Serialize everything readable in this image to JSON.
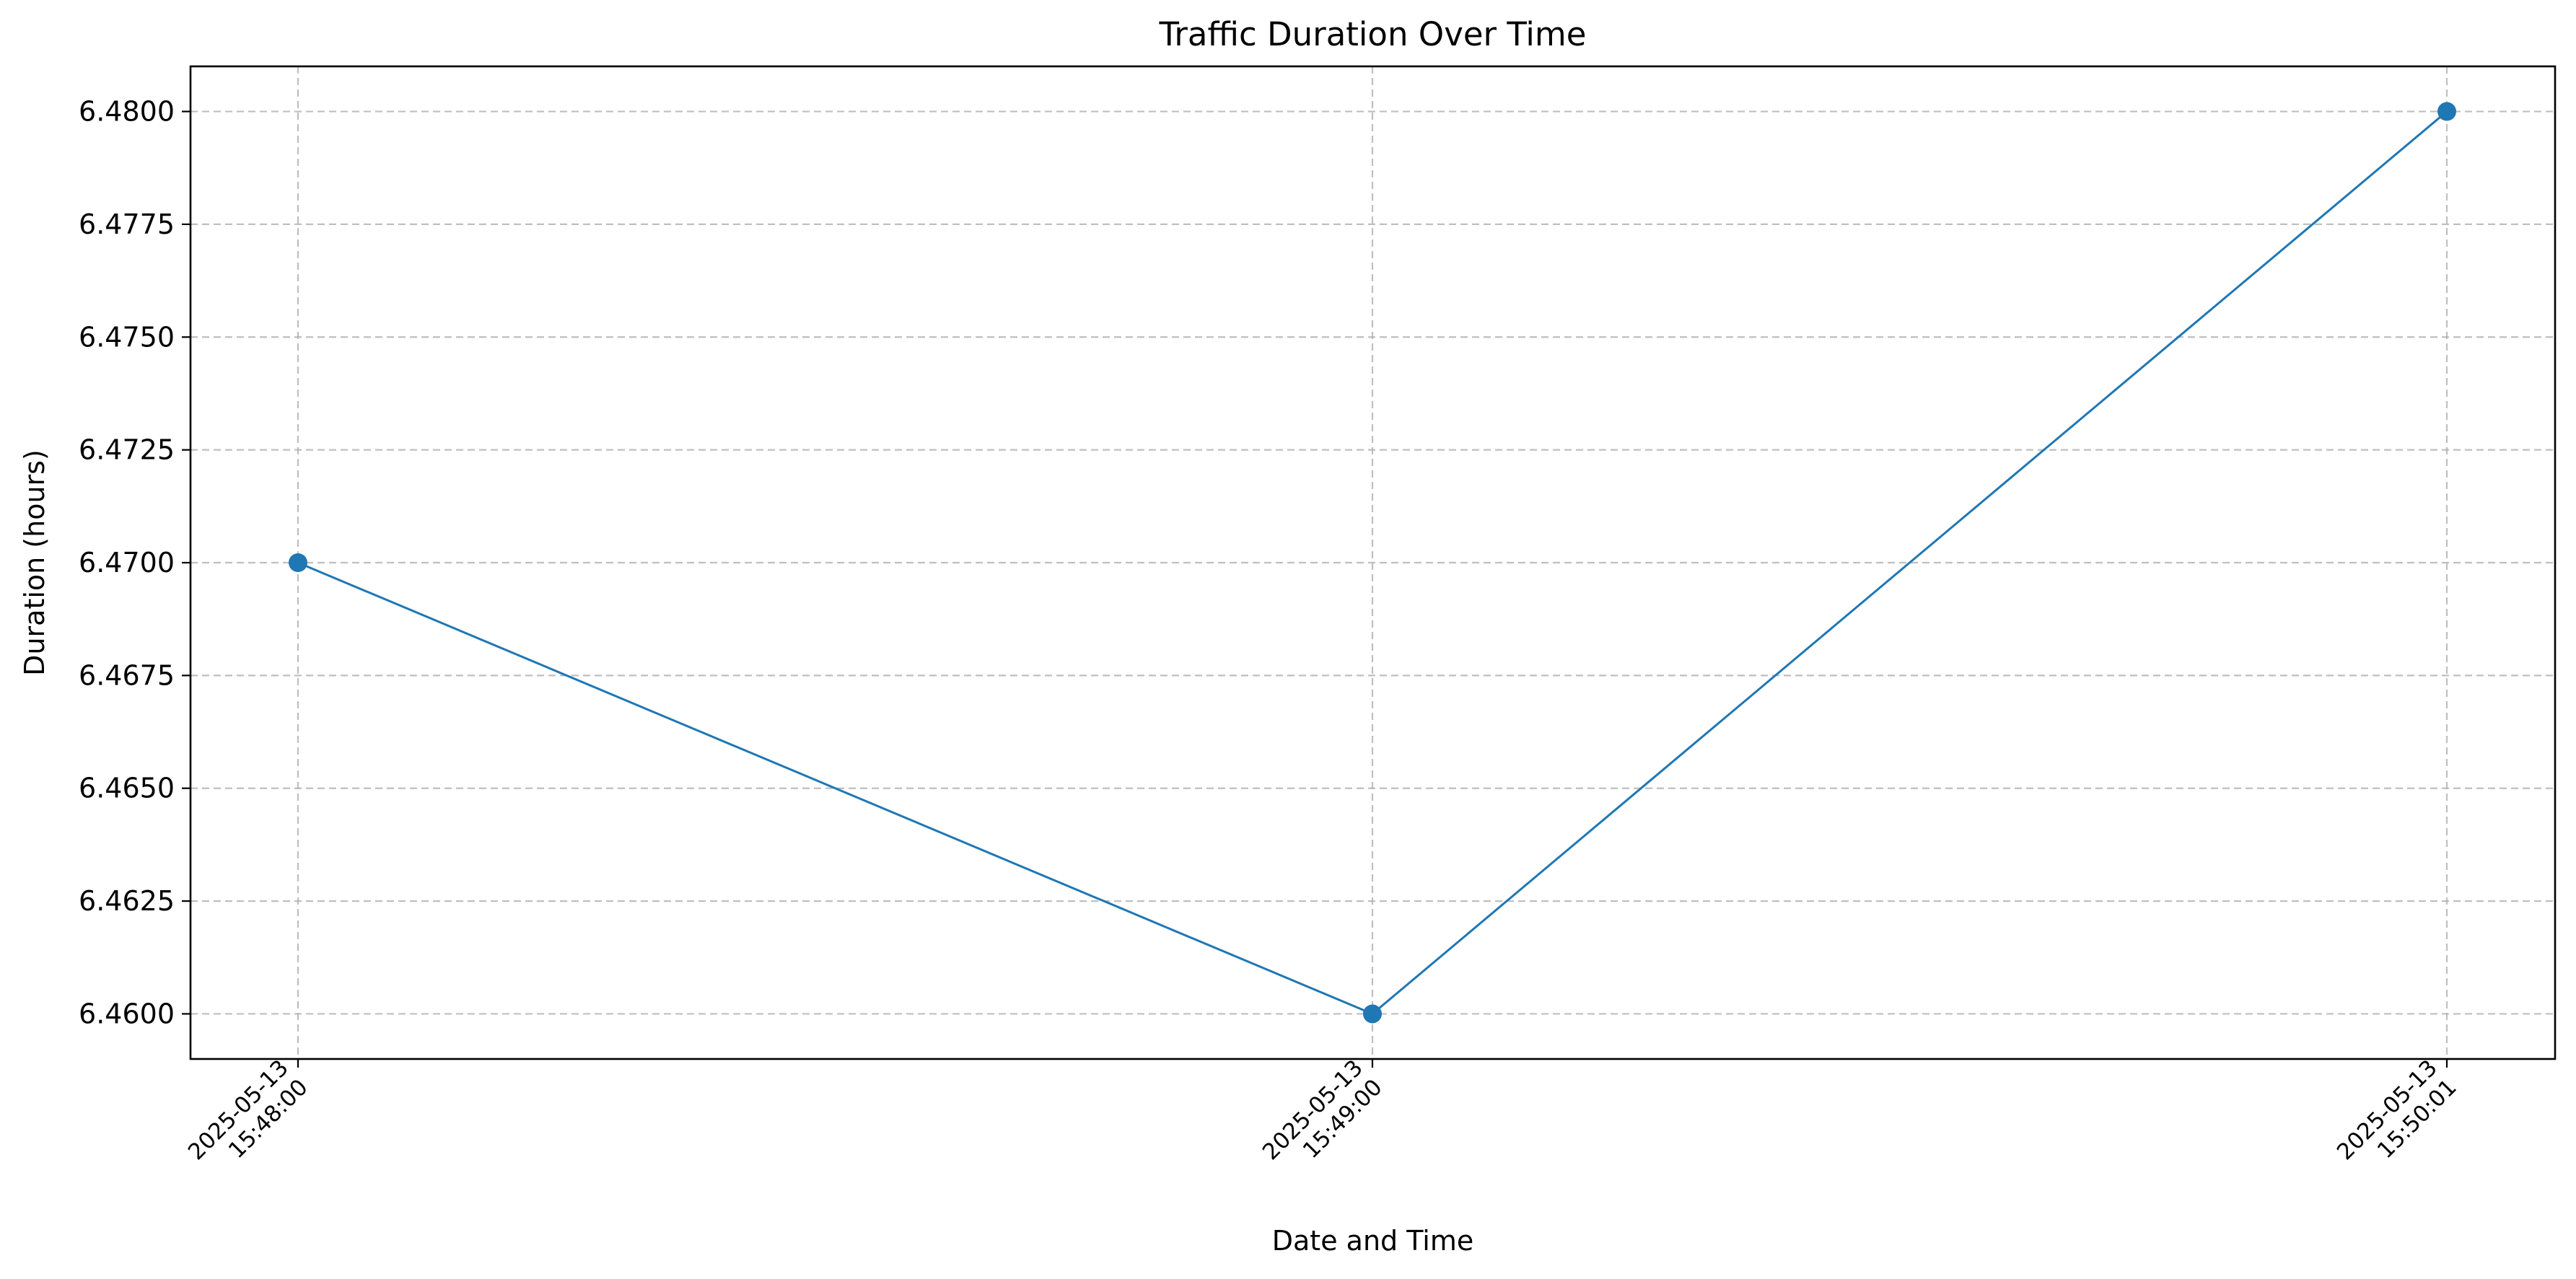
{
  "chart_data": {
    "type": "line",
    "title": "Traffic Duration Over Time",
    "xlabel": "Date and Time",
    "ylabel": "Duration (hours)",
    "x": [
      "2025-05-13 15:48:00",
      "2025-05-13 15:49:00",
      "2025-05-13 15:50:01"
    ],
    "x_tick_labels": [
      [
        "2025-05-13",
        "15:48:00"
      ],
      [
        "2025-05-13",
        "15:49:00"
      ],
      [
        "2025-05-13",
        "15:50:01"
      ]
    ],
    "series": [
      {
        "values": [
          6.47,
          6.46,
          6.48
        ],
        "color": "#1f77b4",
        "marker": "circle"
      }
    ],
    "ylim": [
      6.459,
      6.481
    ],
    "yticks": [
      6.46,
      6.4625,
      6.465,
      6.4675,
      6.47,
      6.4725,
      6.475,
      6.4775,
      6.48
    ],
    "ytick_labels": [
      "6.4600",
      "6.4625",
      "6.4650",
      "6.4675",
      "6.4700",
      "6.4725",
      "6.4750",
      "6.4775",
      "6.4800"
    ],
    "grid": true,
    "legend": false
  }
}
